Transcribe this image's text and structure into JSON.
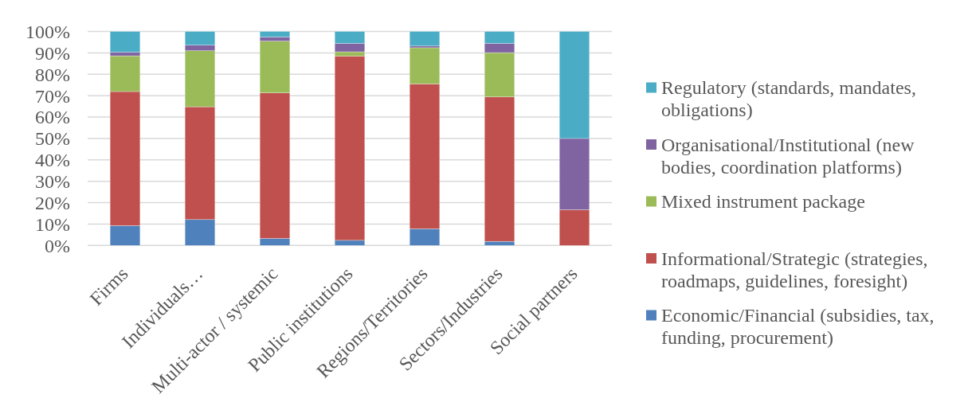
{
  "chart_data": {
    "type": "bar",
    "stacked": true,
    "categories": [
      "Firms",
      "Individuals…",
      "Multi-actor / systemic",
      "Public institutions",
      "Regions/Territories",
      "Sectors/Industries",
      "Social partners"
    ],
    "series": [
      {
        "name": "Economic/Financial (subsidies, tax, funding, procurement)",
        "color": "#4f81bd",
        "values": [
          9.3,
          12.1,
          3.3,
          2.4,
          7.8,
          1.9,
          0
        ]
      },
      {
        "name": "Informational/Strategic (strategies, roadmaps, guidelines, foresight)",
        "color": "#c0504d",
        "values": [
          62.6,
          52.7,
          68.0,
          86.1,
          67.7,
          67.5,
          16.7
        ]
      },
      {
        "name": "Mixed instrument package",
        "color": "#9bbb59",
        "values": [
          16.7,
          26.2,
          24.2,
          2.0,
          16.9,
          20.7,
          0
        ]
      },
      {
        "name": "Organisational/Institutional (new bodies, coordination platforms)",
        "color": "#8064a2",
        "values": [
          1.7,
          2.6,
          1.9,
          3.9,
          0.8,
          4.3,
          33.3
        ]
      },
      {
        "name": "Regulatory (standards, mandates, obligations)",
        "color": "#4bacc6",
        "values": [
          9.7,
          6.4,
          2.6,
          5.6,
          6.8,
          5.6,
          50.0
        ]
      }
    ],
    "ylim": [
      0,
      100
    ],
    "yticks": [
      {
        "value": 0,
        "label": "0%"
      },
      {
        "value": 10,
        "label": "10%"
      },
      {
        "value": 20,
        "label": "20%"
      },
      {
        "value": 30,
        "label": "30%"
      },
      {
        "value": 40,
        "label": "40%"
      },
      {
        "value": 50,
        "label": "50%"
      },
      {
        "value": 60,
        "label": "60%"
      },
      {
        "value": 70,
        "label": "70%"
      },
      {
        "value": 80,
        "label": "80%"
      },
      {
        "value": 90,
        "label": "90%"
      },
      {
        "value": 100,
        "label": "100%"
      }
    ],
    "grid": "y",
    "legend": "right"
  }
}
